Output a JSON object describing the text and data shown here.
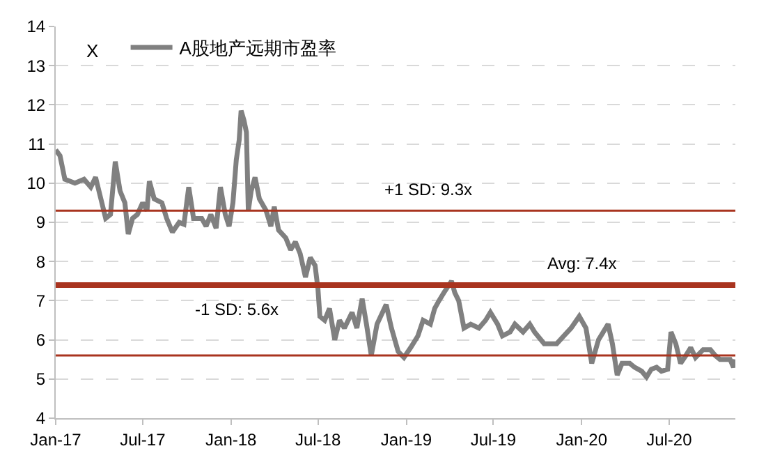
{
  "chart_data": {
    "type": "line",
    "legend": "top left",
    "grid": "y",
    "marker": "none",
    "line_style": "solid",
    "annotations": [
      "X"
    ],
    "xlim": [
      "2017-01-01",
      "2020-11-16"
    ],
    "xticks": [
      {
        "value": "2017-01-01",
        "label": "Jan-17"
      },
      {
        "value": "2017-07-01",
        "label": "Jul-17"
      },
      {
        "value": "2018-01-01",
        "label": "Jan-18"
      },
      {
        "value": "2018-07-01",
        "label": "Jul-18"
      },
      {
        "value": "2019-01-01",
        "label": "Jan-19"
      },
      {
        "value": "2019-07-01",
        "label": "Jul-19"
      },
      {
        "value": "2020-01-01",
        "label": "Jan-20"
      },
      {
        "value": "2020-07-01",
        "label": "Jul-20"
      }
    ],
    "ylim": [
      4,
      14
    ],
    "yticks": [
      4,
      5,
      6,
      7,
      8,
      9,
      10,
      11,
      12,
      13,
      14
    ],
    "ref_lines": [
      {
        "axis": "y",
        "value": 9.3,
        "label": "+1 SD: 9.3x",
        "color": "#a9341f"
      },
      {
        "axis": "y",
        "value": 7.4,
        "label": "Avg: 7.4x",
        "color": "#a9341f"
      },
      {
        "axis": "y",
        "value": 5.6,
        "label": "-1 SD: 5.6x",
        "color": "#a9341f"
      }
    ],
    "x": [
      "2017-01-01",
      "2017-01-10",
      "2017-01-20",
      "2017-02-10",
      "2017-03-01",
      "2017-03-15",
      "2017-03-25",
      "2017-04-05",
      "2017-04-15",
      "2017-04-25",
      "2017-05-05",
      "2017-05-15",
      "2017-05-25",
      "2017-06-01",
      "2017-06-10",
      "2017-06-20",
      "2017-07-01",
      "2017-07-10",
      "2017-07-15",
      "2017-07-25",
      "2017-08-10",
      "2017-08-20",
      "2017-09-01",
      "2017-09-15",
      "2017-09-25",
      "2017-10-05",
      "2017-10-15",
      "2017-11-01",
      "2017-11-10",
      "2017-11-20",
      "2017-12-01",
      "2017-12-10",
      "2017-12-20",
      "2017-12-28",
      "2018-01-05",
      "2018-01-12",
      "2018-01-18",
      "2018-01-22",
      "2018-01-28",
      "2018-02-02",
      "2018-02-06",
      "2018-02-12",
      "2018-02-20",
      "2018-03-01",
      "2018-03-15",
      "2018-03-25",
      "2018-04-01",
      "2018-04-10",
      "2018-04-25",
      "2018-05-05",
      "2018-05-15",
      "2018-05-25",
      "2018-06-05",
      "2018-06-15",
      "2018-06-25",
      "2018-07-01",
      "2018-07-05",
      "2018-07-15",
      "2018-07-25",
      "2018-08-05",
      "2018-08-15",
      "2018-08-25",
      "2018-09-10",
      "2018-09-20",
      "2018-10-01",
      "2018-10-10",
      "2018-10-20",
      "2018-11-01",
      "2018-11-20",
      "2018-12-01",
      "2018-12-15",
      "2018-12-27",
      "2019-01-10",
      "2019-01-25",
      "2019-02-05",
      "2019-02-20",
      "2019-03-01",
      "2019-03-10",
      "2019-03-20",
      "2019-04-05",
      "2019-04-12",
      "2019-04-20",
      "2019-05-01",
      "2019-05-15",
      "2019-06-01",
      "2019-06-15",
      "2019-06-25",
      "2019-07-10",
      "2019-07-20",
      "2019-08-05",
      "2019-08-15",
      "2019-09-01",
      "2019-09-15",
      "2019-09-25",
      "2019-10-15",
      "2019-11-10",
      "2019-11-25",
      "2019-12-10",
      "2019-12-27",
      "2020-01-10",
      "2020-01-22",
      "2020-02-05",
      "2020-02-15",
      "2020-02-25",
      "2020-03-05",
      "2020-03-15",
      "2020-03-25",
      "2020-04-10",
      "2020-04-20",
      "2020-05-05",
      "2020-05-15",
      "2020-05-25",
      "2020-06-05",
      "2020-06-15",
      "2020-06-28",
      "2020-07-05",
      "2020-07-15",
      "2020-07-25",
      "2020-08-05",
      "2020-08-15",
      "2020-08-25",
      "2020-09-10",
      "2020-09-25",
      "2020-10-05",
      "2020-10-15",
      "2020-10-25",
      "2020-11-05",
      "2020-11-12",
      "2020-11-15"
    ],
    "series": [
      {
        "name": "A股地产远期市盈率",
        "color": "#808080",
        "values": [
          10.85,
          10.7,
          10.1,
          10.0,
          10.1,
          9.9,
          10.15,
          9.6,
          9.1,
          9.2,
          10.55,
          9.8,
          9.5,
          8.7,
          9.1,
          9.2,
          9.5,
          9.3,
          10.05,
          9.6,
          9.5,
          9.1,
          8.75,
          9.0,
          8.95,
          9.9,
          9.1,
          9.1,
          8.9,
          9.2,
          8.85,
          9.9,
          9.2,
          8.9,
          9.5,
          10.6,
          11.1,
          11.85,
          11.6,
          11.3,
          9.3,
          9.8,
          10.15,
          9.6,
          9.3,
          8.9,
          9.4,
          8.8,
          8.6,
          8.3,
          8.5,
          8.2,
          7.6,
          8.1,
          7.9,
          7.3,
          6.6,
          6.5,
          6.8,
          6.0,
          6.5,
          6.3,
          6.7,
          6.3,
          7.05,
          6.4,
          5.6,
          6.4,
          6.9,
          6.3,
          5.7,
          5.55,
          5.8,
          6.1,
          6.5,
          6.4,
          6.8,
          7.0,
          7.2,
          7.5,
          7.2,
          7.0,
          6.3,
          6.4,
          6.3,
          6.5,
          6.7,
          6.4,
          6.1,
          6.2,
          6.4,
          6.2,
          6.4,
          6.2,
          5.9,
          5.9,
          6.1,
          6.3,
          6.6,
          6.3,
          5.4,
          6.0,
          6.2,
          6.4,
          5.9,
          5.1,
          5.4,
          5.4,
          5.3,
          5.2,
          5.05,
          5.25,
          5.3,
          5.2,
          5.25,
          6.2,
          5.9,
          5.4,
          5.6,
          5.8,
          5.55,
          5.75,
          5.75,
          5.6,
          5.5,
          5.5,
          5.5,
          5.3,
          5.5
        ]
      }
    ]
  }
}
